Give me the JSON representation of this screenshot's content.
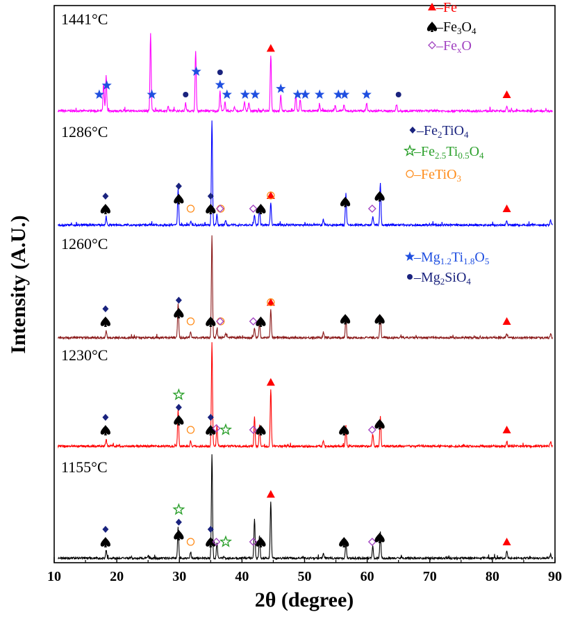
{
  "chart_data": {
    "type": "line",
    "xlabel": "2θ (degree)",
    "ylabel": "Intensity (A.U.)",
    "xlim": [
      10,
      90
    ],
    "xticks": [
      10,
      20,
      30,
      40,
      50,
      60,
      70,
      80,
      90
    ],
    "grid": false,
    "legend": [
      {
        "id": "fe",
        "parts": [
          [
            "n",
            "–Fe"
          ]
        ],
        "color": "#ff0000",
        "marker": "triangle"
      },
      {
        "id": "fe3o4",
        "parts": [
          [
            "n",
            "–Fe"
          ],
          [
            "s",
            "3"
          ],
          [
            "n",
            "O"
          ],
          [
            "s",
            "4"
          ]
        ],
        "color": "#000000",
        "marker": "spade"
      },
      {
        "id": "fexo",
        "parts": [
          [
            "n",
            "–Fe"
          ],
          [
            "s",
            "x"
          ],
          [
            "n",
            "O"
          ]
        ],
        "color": "#a040c0",
        "marker": "diamond-open"
      },
      {
        "id": "fe2tio4",
        "parts": [
          [
            "n",
            "–Fe"
          ],
          [
            "s",
            "2"
          ],
          [
            "n",
            "TiO"
          ],
          [
            "s",
            "4"
          ]
        ],
        "color": "#1a237e",
        "marker": "diamond-filled"
      },
      {
        "id": "fe25",
        "parts": [
          [
            "n",
            "–Fe"
          ],
          [
            "s",
            "2.5"
          ],
          [
            "n",
            "Ti"
          ],
          [
            "s",
            "0.5"
          ],
          [
            "n",
            "O"
          ],
          [
            "s",
            "4"
          ]
        ],
        "color": "#2ca02c",
        "marker": "star-open"
      },
      {
        "id": "fetio3",
        "parts": [
          [
            "n",
            "–FeTiO"
          ],
          [
            "s",
            "3"
          ]
        ],
        "color": "#ff8c1a",
        "marker": "circle-open"
      },
      {
        "id": "mgti",
        "parts": [
          [
            "n",
            "–Mg"
          ],
          [
            "s",
            "1.2"
          ],
          [
            "n",
            "Ti"
          ],
          [
            "s",
            "1.8"
          ],
          [
            "n",
            "O"
          ],
          [
            "s",
            "5"
          ]
        ],
        "color": "#1f4fe0",
        "marker": "star-filled"
      },
      {
        "id": "mg2sio4",
        "parts": [
          [
            "n",
            "–Mg"
          ],
          [
            "s",
            "2"
          ],
          [
            "n",
            "SiO"
          ],
          [
            "s",
            "4"
          ]
        ],
        "color": "#1a237e",
        "marker": "dot"
      }
    ],
    "series": [
      {
        "name": "1441°C",
        "color": "#ff00ff",
        "peaks": [
          [
            17.9,
            0.35
          ],
          [
            18.3,
            0.45
          ],
          [
            25.4,
            1.0
          ],
          [
            28.2,
            0.06
          ],
          [
            31.0,
            0.1
          ],
          [
            32.6,
            0.78
          ],
          [
            36.5,
            0.25
          ],
          [
            37.3,
            0.12
          ],
          [
            38.8,
            0.05
          ],
          [
            40.4,
            0.12
          ],
          [
            41.1,
            0.11
          ],
          [
            44.6,
            0.72
          ],
          [
            46.2,
            0.2
          ],
          [
            48.6,
            0.2
          ],
          [
            49.3,
            0.15
          ],
          [
            52.4,
            0.08
          ],
          [
            54.9,
            0.07
          ],
          [
            56.3,
            0.08
          ],
          [
            59.9,
            0.1
          ],
          [
            64.7,
            0.08
          ],
          [
            82.3,
            0.05
          ]
        ],
        "markers": [
          {
            "x": 17.2,
            "stack": [
              "star-filled"
            ]
          },
          {
            "x": 18.4,
            "stack": [
              "star-filled"
            ]
          },
          {
            "x": 25.6,
            "stack": [
              "star-filled"
            ]
          },
          {
            "x": 31.0,
            "stack": [
              "dot"
            ]
          },
          {
            "x": 32.7,
            "stack": [
              "star-filled"
            ]
          },
          {
            "x": 36.5,
            "stack": [
              "star-filled",
              "dot"
            ]
          },
          {
            "x": 37.6,
            "stack": [
              "star-filled"
            ]
          },
          {
            "x": 40.5,
            "stack": [
              "star-filled"
            ]
          },
          {
            "x": 42.1,
            "stack": [
              "star-filled"
            ]
          },
          {
            "x": 44.6,
            "stack": [
              "triangle"
            ]
          },
          {
            "x": 46.2,
            "stack": [
              "star-filled"
            ]
          },
          {
            "x": 48.9,
            "stack": [
              "star-filled"
            ]
          },
          {
            "x": 50.1,
            "stack": [
              "star-filled"
            ]
          },
          {
            "x": 52.4,
            "stack": [
              "star-filled"
            ]
          },
          {
            "x": 55.4,
            "stack": [
              "star-filled"
            ]
          },
          {
            "x": 56.4,
            "stack": [
              "star-filled"
            ]
          },
          {
            "x": 59.9,
            "stack": [
              "star-filled"
            ]
          },
          {
            "x": 65.0,
            "stack": [
              "dot"
            ]
          },
          {
            "x": 82.3,
            "stack": [
              "triangle"
            ]
          }
        ]
      },
      {
        "name": "1286°C",
        "color": "#0000ff",
        "peaks": [
          [
            18.3,
            0.08
          ],
          [
            29.8,
            0.35
          ],
          [
            31.8,
            0.04
          ],
          [
            35.2,
            1.0
          ],
          [
            36.0,
            0.1
          ],
          [
            37.4,
            0.04
          ],
          [
            42.0,
            0.1
          ],
          [
            42.8,
            0.18
          ],
          [
            44.6,
            0.22
          ],
          [
            53.0,
            0.05
          ],
          [
            56.6,
            0.3
          ],
          [
            60.9,
            0.08
          ],
          [
            62.1,
            0.4
          ],
          [
            82.3,
            0.04
          ],
          [
            89.3,
            0.05
          ]
        ],
        "markers": [
          {
            "x": 18.2,
            "stack": [
              "spade",
              "diamond-filled"
            ]
          },
          {
            "x": 29.9,
            "stack": [
              "spade",
              "diamond-filled"
            ]
          },
          {
            "x": 31.8,
            "stack": [
              "circle-open"
            ]
          },
          {
            "x": 35.0,
            "stack": [
              "spade",
              "diamond-filled"
            ]
          },
          {
            "x": 36.6,
            "stack": [
              "circle-open"
            ]
          },
          {
            "x": 36.5,
            "stack": [
              "diamond-open"
            ]
          },
          {
            "x": 41.8,
            "stack": [
              "diamond-open"
            ]
          },
          {
            "x": 43.0,
            "stack": [
              "spade"
            ]
          },
          {
            "x": 44.6,
            "stack": [
              "triangle"
            ]
          },
          {
            "x": 44.6,
            "stack": [
              "circle-open"
            ]
          },
          {
            "x": 56.5,
            "stack": [
              "spade"
            ]
          },
          {
            "x": 60.8,
            "stack": [
              "diamond-open"
            ]
          },
          {
            "x": 62.0,
            "stack": [
              "spade"
            ]
          },
          {
            "x": 82.3,
            "stack": [
              "triangle"
            ]
          }
        ]
      },
      {
        "name": "1260°C",
        "color": "#8b1a1a",
        "peaks": [
          [
            18.3,
            0.07
          ],
          [
            29.8,
            0.33
          ],
          [
            31.8,
            0.05
          ],
          [
            35.2,
            1.0
          ],
          [
            36.0,
            0.08
          ],
          [
            37.4,
            0.04
          ],
          [
            42.0,
            0.1
          ],
          [
            42.8,
            0.16
          ],
          [
            44.6,
            0.28
          ],
          [
            53.0,
            0.05
          ],
          [
            56.6,
            0.22
          ],
          [
            62.1,
            0.22
          ],
          [
            82.3,
            0.04
          ],
          [
            89.3,
            0.04
          ]
        ],
        "markers": [
          {
            "x": 18.2,
            "stack": [
              "spade",
              "diamond-filled"
            ]
          },
          {
            "x": 29.9,
            "stack": [
              "spade",
              "diamond-filled"
            ]
          },
          {
            "x": 31.8,
            "stack": [
              "circle-open"
            ]
          },
          {
            "x": 35.0,
            "stack": [
              "spade"
            ]
          },
          {
            "x": 36.6,
            "stack": [
              "circle-open"
            ]
          },
          {
            "x": 36.5,
            "stack": [
              "diamond-open"
            ]
          },
          {
            "x": 41.8,
            "stack": [
              "diamond-open"
            ]
          },
          {
            "x": 43.0,
            "stack": [
              "spade"
            ]
          },
          {
            "x": 44.6,
            "stack": [
              "triangle"
            ]
          },
          {
            "x": 44.6,
            "stack": [
              "circle-open"
            ]
          },
          {
            "x": 56.5,
            "stack": [
              "spade"
            ]
          },
          {
            "x": 62.0,
            "stack": [
              "spade"
            ]
          },
          {
            "x": 82.3,
            "stack": [
              "triangle"
            ]
          }
        ]
      },
      {
        "name": "1230°C",
        "color": "#ff0000",
        "peaks": [
          [
            18.3,
            0.07
          ],
          [
            29.8,
            0.35
          ],
          [
            31.8,
            0.05
          ],
          [
            35.2,
            1.0
          ],
          [
            36.0,
            0.2
          ],
          [
            42.0,
            0.28
          ],
          [
            42.8,
            0.2
          ],
          [
            44.6,
            0.55
          ],
          [
            53.0,
            0.06
          ],
          [
            56.6,
            0.18
          ],
          [
            60.9,
            0.12
          ],
          [
            62.1,
            0.28
          ],
          [
            82.3,
            0.04
          ],
          [
            89.3,
            0.05
          ]
        ],
        "markers": [
          {
            "x": 18.2,
            "stack": [
              "spade",
              "diamond-filled"
            ]
          },
          {
            "x": 29.9,
            "stack": [
              "spade",
              "diamond-filled",
              "star-open"
            ]
          },
          {
            "x": 31.8,
            "stack": [
              "circle-open"
            ]
          },
          {
            "x": 35.0,
            "stack": [
              "spade",
              "diamond-filled"
            ]
          },
          {
            "x": 37.4,
            "stack": [
              "star-open"
            ]
          },
          {
            "x": 35.9,
            "stack": [
              "diamond-open"
            ]
          },
          {
            "x": 41.8,
            "stack": [
              "diamond-open"
            ]
          },
          {
            "x": 43.0,
            "stack": [
              "spade"
            ]
          },
          {
            "x": 44.6,
            "stack": [
              "triangle"
            ]
          },
          {
            "x": 56.3,
            "stack": [
              "spade"
            ]
          },
          {
            "x": 60.8,
            "stack": [
              "diamond-open"
            ]
          },
          {
            "x": 62.0,
            "stack": [
              "spade"
            ]
          },
          {
            "x": 82.3,
            "stack": [
              "triangle"
            ]
          }
        ]
      },
      {
        "name": "1155°C",
        "color": "#000000",
        "peaks": [
          [
            18.3,
            0.08
          ],
          [
            25.0,
            0.03
          ],
          [
            29.8,
            0.3
          ],
          [
            31.8,
            0.06
          ],
          [
            35.2,
            1.0
          ],
          [
            36.0,
            0.15
          ],
          [
            42.0,
            0.38
          ],
          [
            42.8,
            0.22
          ],
          [
            44.6,
            0.55
          ],
          [
            53.0,
            0.05
          ],
          [
            56.6,
            0.15
          ],
          [
            60.9,
            0.12
          ],
          [
            62.1,
            0.25
          ],
          [
            82.3,
            0.07
          ],
          [
            89.3,
            0.04
          ]
        ],
        "markers": [
          {
            "x": 18.2,
            "stack": [
              "spade",
              "diamond-filled"
            ]
          },
          {
            "x": 29.9,
            "stack": [
              "spade",
              "diamond-filled",
              "star-open"
            ]
          },
          {
            "x": 31.8,
            "stack": [
              "circle-open"
            ]
          },
          {
            "x": 35.0,
            "stack": [
              "spade",
              "diamond-filled"
            ]
          },
          {
            "x": 37.4,
            "stack": [
              "star-open"
            ]
          },
          {
            "x": 35.9,
            "stack": [
              "diamond-open"
            ]
          },
          {
            "x": 41.8,
            "stack": [
              "diamond-open"
            ]
          },
          {
            "x": 43.0,
            "stack": [
              "spade"
            ]
          },
          {
            "x": 44.6,
            "stack": [
              "triangle"
            ]
          },
          {
            "x": 56.3,
            "stack": [
              "spade"
            ]
          },
          {
            "x": 60.8,
            "stack": [
              "diamond-open"
            ]
          },
          {
            "x": 62.0,
            "stack": [
              "spade"
            ]
          },
          {
            "x": 82.3,
            "stack": [
              "triangle"
            ]
          }
        ]
      }
    ]
  }
}
